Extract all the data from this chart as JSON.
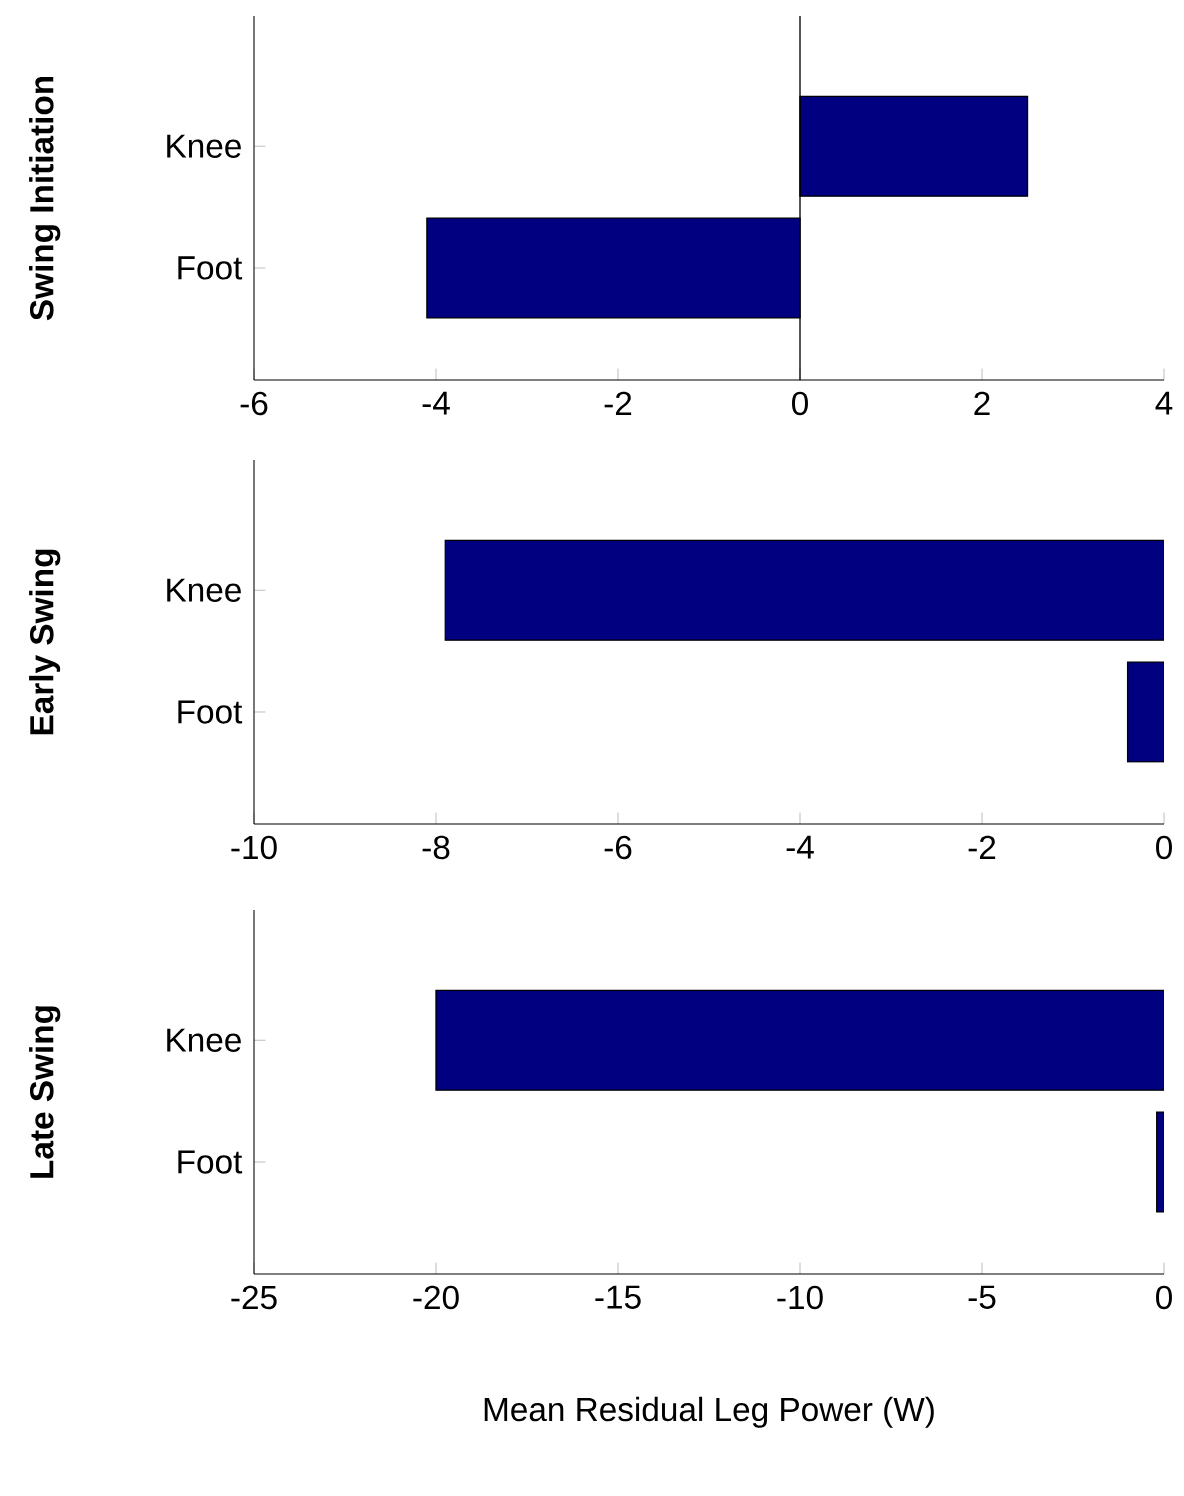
{
  "chart_data": [
    {
      "type": "bar",
      "orientation": "horizontal",
      "categories": [
        "Knee",
        "Foot"
      ],
      "values": [
        2.5,
        -4.1
      ],
      "color": "#000080",
      "xlim": [
        -6,
        4
      ],
      "xticks": [
        -6,
        -4,
        -2,
        0,
        2,
        4
      ],
      "ylabel": "Swing Initiation",
      "ref_lines": [
        {
          "axis": "x",
          "value": 0
        }
      ]
    },
    {
      "type": "bar",
      "orientation": "horizontal",
      "categories": [
        "Knee",
        "Foot"
      ],
      "values": [
        -7.9,
        -0.4
      ],
      "color": "#000080",
      "xlim": [
        -10,
        0
      ],
      "xticks": [
        -10,
        -8,
        -6,
        -4,
        -2,
        0
      ],
      "ylabel": "Early Swing"
    },
    {
      "type": "bar",
      "orientation": "horizontal",
      "categories": [
        "Knee",
        "Foot"
      ],
      "values": [
        -20.0,
        -0.2
      ],
      "color": "#000080",
      "xlim": [
        -25,
        0
      ],
      "xticks": [
        -25,
        -20,
        -15,
        -10,
        -5,
        0
      ],
      "ylabel": "Late Swing",
      "xlabel": "Mean Residual Leg Power (W)"
    }
  ]
}
